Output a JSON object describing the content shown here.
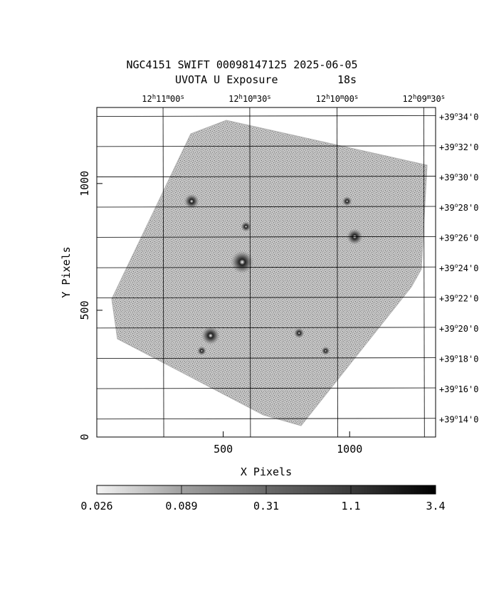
{
  "title": "NGC4151 SWIFT 00098147125 2025-06-05",
  "subtitle_obs": "UVOTA U Exposure",
  "subtitle_exp": "18s",
  "chart_data": {
    "type": "heatmap",
    "xlabel": "X Pixels",
    "ylabel": "Y Pixels",
    "xlim": [
      0,
      1340
    ],
    "ylim": [
      0,
      1300
    ],
    "x_ticks": [
      500,
      1000
    ],
    "y_ticks": [
      0,
      500,
      1000
    ],
    "ra_ticks": [
      {
        "h": "12",
        "m": "11",
        "s": "00",
        "x": 262
      },
      {
        "h": "12",
        "m": "10",
        "s": "30",
        "x": 605
      },
      {
        "h": "12",
        "m": "10",
        "s": "00",
        "x": 950
      },
      {
        "h": "12",
        "m": "09",
        "s": "30",
        "x": 1293
      }
    ],
    "dec_ticks": [
      {
        "label": "+39°34'0",
        "y": 1265
      },
      {
        "label": "+39°32'0",
        "y": 1146
      },
      {
        "label": "+39°30'0",
        "y": 1026
      },
      {
        "label": "+39°28'0",
        "y": 907
      },
      {
        "label": "+39°26'0",
        "y": 788
      },
      {
        "label": "+39°24'0",
        "y": 668
      },
      {
        "label": "+39°22'0",
        "y": 549
      },
      {
        "label": "+39°20'0",
        "y": 430
      },
      {
        "label": "+39°18'0",
        "y": 310
      },
      {
        "label": "+39°16'0",
        "y": 191
      },
      {
        "label": "+39°14'0",
        "y": 71
      }
    ],
    "colorbar": {
      "labels": [
        "0.026",
        "0.089",
        "0.31",
        "1.1",
        "3.4"
      ]
    },
    "sources": [
      {
        "x": 575,
        "y": 690,
        "size": 3
      },
      {
        "x": 450,
        "y": 400,
        "size": 2.2
      },
      {
        "x": 1020,
        "y": 790,
        "size": 1.8
      },
      {
        "x": 375,
        "y": 930,
        "size": 1.6
      },
      {
        "x": 590,
        "y": 830,
        "size": 0.8
      },
      {
        "x": 800,
        "y": 410,
        "size": 0.8
      },
      {
        "x": 990,
        "y": 930,
        "size": 0.7
      },
      {
        "x": 415,
        "y": 340,
        "size": 0.6
      },
      {
        "x": 905,
        "y": 340,
        "size": 0.5
      }
    ]
  }
}
